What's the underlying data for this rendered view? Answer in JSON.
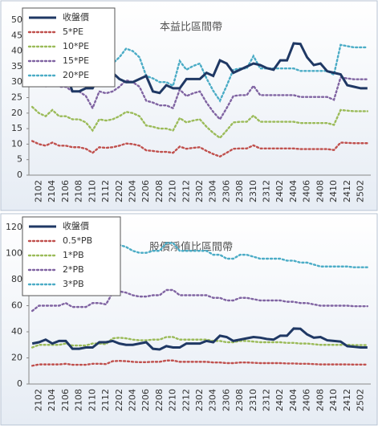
{
  "chart_data": [
    {
      "type": "line",
      "title": "本益比區間帶",
      "categories": [
        null,
        "2102",
        null,
        "2104",
        null,
        "2106",
        null,
        "2108",
        null,
        "2110",
        null,
        "2112",
        null,
        "2202",
        null,
        "2204",
        null,
        "2206",
        null,
        "2208",
        null,
        "2210",
        null,
        "2212",
        null,
        "2302",
        null,
        "2304",
        null,
        "2306",
        null,
        "2308",
        null,
        "2310",
        null,
        "2312",
        null,
        "2402",
        null,
        "2404",
        null,
        "2406",
        null,
        "2408",
        null,
        "2410",
        null,
        "2412",
        null,
        "2502",
        null
      ],
      "ylim": [
        0,
        50
      ],
      "yticks": [
        0,
        5,
        10,
        15,
        20,
        25,
        30,
        35,
        40,
        45,
        50
      ],
      "legend": "upper left",
      "series": [
        {
          "name": "收盤價",
          "color": "#1f3864",
          "style": "solid",
          "values": [
            31,
            32,
            34,
            31,
            33,
            33,
            27,
            27,
            28,
            28,
            32,
            32,
            33,
            31,
            30,
            30,
            31,
            32,
            27,
            26.5,
            29,
            28,
            28,
            31,
            31,
            31,
            33,
            32,
            37,
            36,
            33,
            34,
            35,
            36,
            35.5,
            34.5,
            34,
            37,
            37,
            42.5,
            42.3,
            38,
            35.5,
            36,
            33.5,
            33,
            32.5,
            29,
            28.5,
            28,
            28
          ]
        },
        {
          "name": "5*PE",
          "color": "#c0504d",
          "style": "dotted",
          "values": [
            11,
            10,
            9.5,
            10.5,
            9.5,
            9.5,
            9,
            9,
            8.5,
            7.2,
            9,
            8.8,
            9,
            9.5,
            10.2,
            10,
            9.5,
            8,
            7.8,
            7.5,
            7.5,
            7.2,
            9.2,
            8.5,
            8.8,
            9,
            7.8,
            6.8,
            6,
            7.2,
            8.5,
            8.6,
            8.6,
            9.6,
            8.6,
            8.6,
            8.6,
            8.6,
            8.6,
            8.6,
            8.4,
            8.4,
            8.4,
            8.4,
            8.4,
            8.1,
            10.5,
            10.4,
            10.3,
            10.3,
            10.3
          ]
        },
        {
          "name": "10*PE",
          "color": "#9bbb59",
          "style": "dotted",
          "values": [
            22,
            20,
            19,
            21,
            19,
            19,
            18,
            18,
            17,
            14.4,
            18,
            17.6,
            18,
            19,
            20.4,
            20,
            19,
            16,
            15.6,
            15,
            15,
            14.4,
            18.4,
            17,
            17.6,
            18,
            15.6,
            13.6,
            12,
            14.4,
            17,
            17.2,
            17.2,
            19.2,
            17.2,
            17.2,
            17.2,
            17.2,
            17.2,
            17.2,
            16.8,
            16.8,
            16.8,
            16.8,
            16.8,
            16.2,
            21,
            20.8,
            20.6,
            20.6,
            20.6
          ]
        },
        {
          "name": "15*PE",
          "color": "#8064a2",
          "style": "dotted",
          "values": [
            33,
            30,
            28.5,
            31.5,
            28.5,
            28.5,
            27,
            27,
            25.5,
            21.6,
            27,
            26.4,
            27,
            28.5,
            30.6,
            30,
            28.5,
            24,
            23.4,
            22.5,
            22.5,
            21.6,
            27.6,
            25.5,
            26.4,
            27,
            23.4,
            20.4,
            18,
            21.6,
            25.5,
            25.8,
            25.8,
            28.8,
            25.8,
            25.8,
            25.8,
            25.8,
            25.8,
            25.8,
            25.2,
            25.2,
            25.2,
            25.2,
            25.2,
            24.3,
            31.5,
            31.2,
            30.9,
            30.9,
            30.9
          ]
        },
        {
          "name": "20*PE",
          "color": "#4bacc6",
          "style": "dotted",
          "values": [
            44,
            40,
            38,
            42,
            38,
            38,
            36,
            36,
            34,
            28.8,
            36,
            35.2,
            36,
            38,
            40.8,
            40,
            38,
            32,
            31.2,
            30,
            30,
            28.8,
            36.8,
            34,
            35.2,
            36,
            31.2,
            27.2,
            24,
            28.8,
            34,
            34.4,
            34.4,
            38.4,
            34.4,
            34.4,
            34.4,
            34.4,
            34.4,
            34.4,
            33.6,
            33.6,
            33.6,
            33.6,
            33.6,
            32.4,
            42,
            41.6,
            41.2,
            41.2,
            41.2
          ]
        }
      ]
    },
    {
      "type": "line",
      "title": "股價淨值比區間帶",
      "categories": [
        null,
        "2102",
        null,
        "2104",
        null,
        "2106",
        null,
        "2108",
        null,
        "2110",
        null,
        "2112",
        null,
        "2202",
        null,
        "2204",
        null,
        "2206",
        null,
        "2208",
        null,
        "2210",
        null,
        "2212",
        null,
        "2302",
        null,
        "2304",
        null,
        "2306",
        null,
        "2308",
        null,
        "2310",
        null,
        "2312",
        null,
        "2402",
        null,
        "2404",
        null,
        "2406",
        null,
        "2408",
        null,
        "2410",
        null,
        "2412",
        null,
        "2502",
        null
      ],
      "ylim": [
        0,
        120
      ],
      "yticks": [
        0,
        20,
        40,
        60,
        80,
        100,
        120
      ],
      "legend": "upper left",
      "series": [
        {
          "name": "收盤價",
          "color": "#1f3864",
          "style": "solid",
          "values": [
            31,
            32,
            34,
            31,
            33,
            33,
            27,
            27,
            28,
            28,
            32,
            32,
            33,
            31,
            30,
            30,
            31,
            32,
            27,
            26.5,
            29,
            28,
            28,
            31,
            31,
            31,
            33,
            32,
            37,
            36,
            33,
            34,
            35,
            36,
            35.5,
            34.5,
            34,
            37,
            37,
            42.5,
            42.3,
            38,
            35.5,
            36,
            33.5,
            33,
            32.5,
            29,
            28.5,
            28,
            28
          ]
        },
        {
          "name": "0.5*PB",
          "color": "#c0504d",
          "style": "dotted",
          "values": [
            14,
            15,
            15,
            15,
            15,
            15.5,
            14.75,
            14.75,
            14.75,
            15.5,
            15.5,
            15.25,
            17.5,
            17.75,
            17.5,
            17,
            16.75,
            16.75,
            17,
            17,
            18,
            18,
            17,
            17,
            17,
            17,
            17,
            16.5,
            16.5,
            16,
            16,
            16.5,
            16.5,
            16.25,
            16,
            16,
            16,
            16,
            15.75,
            15.75,
            15.5,
            15.5,
            15.25,
            15,
            15,
            15,
            15,
            15,
            14.9,
            14.9,
            14.9
          ]
        },
        {
          "name": "1*PB",
          "color": "#9bbb59",
          "style": "dotted",
          "values": [
            28,
            30,
            30,
            30,
            30,
            31,
            29.5,
            29.5,
            29.5,
            31,
            31,
            30.5,
            35,
            35.5,
            35,
            34,
            33.5,
            33.5,
            34,
            34,
            36,
            36,
            34,
            34,
            34,
            34,
            34,
            33,
            33,
            32,
            32,
            33,
            33,
            32.5,
            32,
            32,
            32,
            32,
            31.5,
            31.5,
            31,
            31,
            30.5,
            30,
            30,
            30,
            30,
            30,
            29.8,
            29.8,
            29.8
          ]
        },
        {
          "name": "2*PB",
          "color": "#8064a2",
          "style": "dotted",
          "values": [
            56,
            60,
            60,
            60,
            60,
            62,
            59,
            59,
            59,
            62,
            62,
            61,
            70,
            71,
            70,
            68,
            67,
            67,
            68,
            68,
            72,
            72,
            68,
            68,
            68,
            68,
            68,
            66,
            66,
            64,
            64,
            66,
            66,
            65,
            64,
            64,
            64,
            64,
            63,
            63,
            62,
            62,
            61,
            60,
            60,
            60,
            60,
            60,
            59.6,
            59.6,
            59.6
          ]
        },
        {
          "name": "3*PB",
          "color": "#4bacc6",
          "style": "dotted",
          "values": [
            84,
            90,
            90,
            90,
            90,
            93,
            88.5,
            88.5,
            88.5,
            93,
            93,
            91.5,
            105,
            106.5,
            105,
            102,
            100.5,
            100.5,
            102,
            102,
            108,
            108,
            102,
            102,
            102,
            102,
            102,
            99,
            99,
            96,
            96,
            99,
            99,
            97.5,
            96,
            96,
            96,
            96,
            94.5,
            94.5,
            93,
            93,
            91.5,
            90,
            90,
            90,
            90,
            90,
            89.4,
            89.4,
            89.4
          ]
        }
      ]
    }
  ]
}
